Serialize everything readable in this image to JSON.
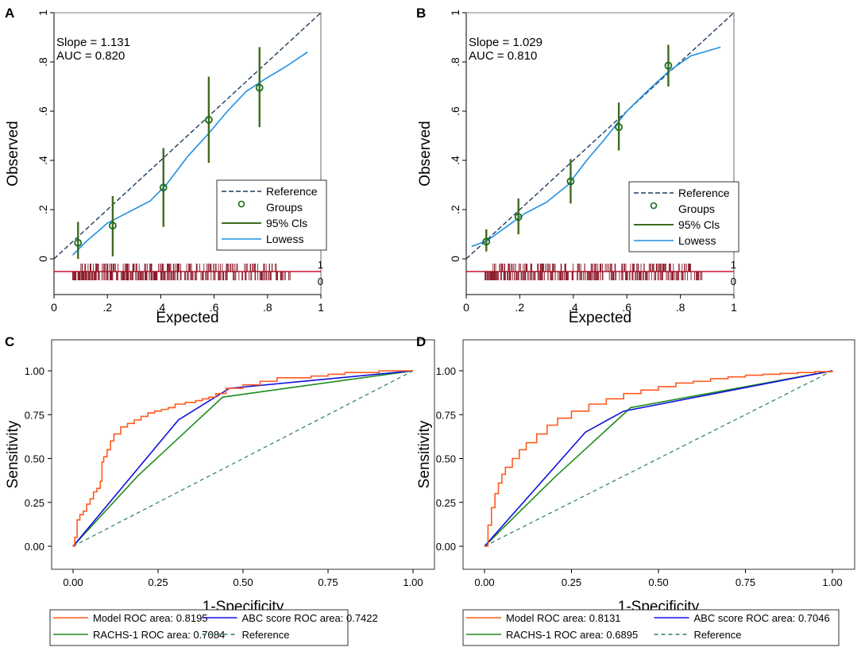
{
  "colors": {
    "reference_dash": "#1F3A5F",
    "groups_marker": "#1A6B1A",
    "ci_line": "#3E6B1E",
    "lowess": "#1E8FE0",
    "rug": "#8B1A2A",
    "rug_base": "#C8102E",
    "model_roc": "#FF5A1F",
    "abc_roc": "#1010E0",
    "rachs_roc": "#1E8C1E",
    "roc_reference": "#2E7D5B"
  },
  "chart_data": [
    {
      "panel": "A",
      "type": "scatter",
      "xlabel": "Expected",
      "ylabel": "Observed",
      "xlim": [
        0,
        1
      ],
      "ylim": [
        -0.08,
        1
      ],
      "x_ticks": [
        "0",
        ".2",
        ".4",
        ".6",
        ".8",
        "1"
      ],
      "y_ticks": [
        "0",
        ".2",
        ".4",
        ".6",
        ".8",
        "1"
      ],
      "annotations": [
        "Slope = 1.131",
        "AUC = 0.820"
      ],
      "legend": [
        "Reference",
        "Groups",
        "95% Cls",
        "Lowess"
      ],
      "rug_labels": [
        "1",
        "0"
      ],
      "reference": {
        "x": [
          0,
          1
        ],
        "y": [
          0,
          1
        ]
      },
      "groups": {
        "x": [
          0.09,
          0.22,
          0.41,
          0.58,
          0.77
        ],
        "y": [
          0.065,
          0.135,
          0.29,
          0.565,
          0.695
        ]
      },
      "ci": {
        "lower": [
          0.0,
          0.01,
          0.13,
          0.39,
          0.535
        ],
        "upper": [
          0.15,
          0.255,
          0.45,
          0.74,
          0.86
        ]
      },
      "lowess": {
        "x": [
          0.07,
          0.12,
          0.2,
          0.28,
          0.36,
          0.42,
          0.5,
          0.58,
          0.65,
          0.72,
          0.79,
          0.86,
          0.95
        ],
        "y": [
          0.015,
          0.07,
          0.145,
          0.19,
          0.235,
          0.3,
          0.415,
          0.51,
          0.6,
          0.68,
          0.73,
          0.775,
          0.84
        ]
      }
    },
    {
      "panel": "B",
      "type": "scatter",
      "xlabel": "Expected",
      "ylabel": "Observed",
      "xlim": [
        0,
        1
      ],
      "ylim": [
        -0.08,
        1
      ],
      "x_ticks": [
        "0",
        ".2",
        ".4",
        ".6",
        ".8",
        "1"
      ],
      "y_ticks": [
        "0",
        ".2",
        ".4",
        ".6",
        ".8",
        "1"
      ],
      "annotations": [
        "Slope = 1.029",
        "AUC = 0.810"
      ],
      "legend": [
        "Reference",
        "Groups",
        "95% Cls",
        "Lowess"
      ],
      "rug_labels": [
        "1",
        "0"
      ],
      "reference": {
        "x": [
          0,
          1
        ],
        "y": [
          0,
          1
        ]
      },
      "groups": {
        "x": [
          0.075,
          0.195,
          0.39,
          0.57,
          0.755
        ],
        "y": [
          0.07,
          0.17,
          0.315,
          0.535,
          0.785
        ]
      },
      "ci": {
        "lower": [
          0.03,
          0.1,
          0.225,
          0.44,
          0.7
        ],
        "upper": [
          0.12,
          0.245,
          0.405,
          0.635,
          0.87
        ]
      },
      "lowess": {
        "x": [
          0.02,
          0.08,
          0.15,
          0.22,
          0.3,
          0.38,
          0.45,
          0.52,
          0.6,
          0.68,
          0.76,
          0.84,
          0.95
        ],
        "y": [
          0.05,
          0.075,
          0.13,
          0.185,
          0.23,
          0.3,
          0.4,
          0.49,
          0.6,
          0.685,
          0.765,
          0.825,
          0.86
        ]
      }
    },
    {
      "panel": "C",
      "type": "line",
      "xlabel": "1-Specificity",
      "ylabel": "Sensitivity",
      "xlim": [
        0,
        1
      ],
      "ylim": [
        0,
        1
      ],
      "x_ticks": [
        "0.00",
        "0.25",
        "0.50",
        "0.75",
        "1.00"
      ],
      "y_ticks": [
        "0.00",
        "0.25",
        "0.50",
        "0.75",
        "1.00"
      ],
      "legend": [
        "Model ROC area: 0.8195",
        "ABC score ROC area: 0.7422",
        "RACHS-1 ROC area: 0.7084",
        "Reference"
      ],
      "series": [
        {
          "name": "Model ROC area: 0.8195",
          "x": [
            0,
            0.005,
            0.012,
            0.02,
            0.03,
            0.04,
            0.05,
            0.06,
            0.07,
            0.08,
            0.085,
            0.09,
            0.1,
            0.11,
            0.12,
            0.14,
            0.16,
            0.18,
            0.2,
            0.22,
            0.24,
            0.26,
            0.28,
            0.3,
            0.33,
            0.36,
            0.38,
            0.4,
            0.42,
            0.45,
            0.5,
            0.55,
            0.6,
            0.7,
            0.75,
            0.8,
            0.9,
            1.0
          ],
          "y": [
            0,
            0.05,
            0.15,
            0.18,
            0.2,
            0.24,
            0.27,
            0.31,
            0.33,
            0.37,
            0.48,
            0.51,
            0.55,
            0.6,
            0.64,
            0.68,
            0.7,
            0.72,
            0.74,
            0.76,
            0.77,
            0.78,
            0.79,
            0.81,
            0.82,
            0.83,
            0.84,
            0.85,
            0.87,
            0.9,
            0.92,
            0.94,
            0.96,
            0.97,
            0.98,
            0.99,
            1.0,
            1.0
          ]
        },
        {
          "name": "ABC score ROC area: 0.7422",
          "x": [
            0,
            0.31,
            0.46,
            1.0
          ],
          "y": [
            0,
            0.72,
            0.9,
            1.0
          ]
        },
        {
          "name": "RACHS-1 ROC area: 0.7084",
          "x": [
            0,
            0.19,
            0.44,
            1.0
          ],
          "y": [
            0,
            0.4,
            0.85,
            1.0
          ]
        },
        {
          "name": "Reference",
          "x": [
            0,
            1.0
          ],
          "y": [
            0,
            1.0
          ]
        }
      ]
    },
    {
      "panel": "D",
      "type": "line",
      "xlabel": "1-Specificity",
      "ylabel": "Sensitivity",
      "xlim": [
        0,
        1
      ],
      "ylim": [
        0,
        1
      ],
      "x_ticks": [
        "0.00",
        "0.25",
        "0.50",
        "0.75",
        "1.00"
      ],
      "y_ticks": [
        "0.00",
        "0.25",
        "0.50",
        "0.75",
        "1.00"
      ],
      "legend": [
        "Model ROC area: 0.8131",
        "ABC score ROC area: 0.7046",
        "RACHS-1 ROC area: 0.6895",
        "Reference"
      ],
      "series": [
        {
          "name": "Model ROC area: 0.8131",
          "x": [
            0,
            0.01,
            0.02,
            0.03,
            0.04,
            0.05,
            0.06,
            0.08,
            0.1,
            0.12,
            0.15,
            0.18,
            0.21,
            0.25,
            0.3,
            0.35,
            0.4,
            0.45,
            0.5,
            0.55,
            0.6,
            0.65,
            0.7,
            0.75,
            0.8,
            0.85,
            0.9,
            0.95,
            1.0
          ],
          "y": [
            0,
            0.12,
            0.22,
            0.3,
            0.36,
            0.41,
            0.45,
            0.5,
            0.55,
            0.59,
            0.64,
            0.69,
            0.73,
            0.77,
            0.81,
            0.84,
            0.87,
            0.89,
            0.91,
            0.93,
            0.94,
            0.955,
            0.965,
            0.975,
            0.98,
            0.985,
            0.99,
            0.995,
            1.0
          ]
        },
        {
          "name": "ABC score ROC area: 0.7046",
          "x": [
            0,
            0.29,
            0.4,
            1.0
          ],
          "y": [
            0,
            0.65,
            0.77,
            1.0
          ]
        },
        {
          "name": "RACHS-1 ROC area: 0.6895",
          "x": [
            0,
            0.2,
            0.42,
            1.0
          ],
          "y": [
            0,
            0.39,
            0.79,
            1.0
          ]
        },
        {
          "name": "Reference",
          "x": [
            0,
            1.0
          ],
          "y": [
            0,
            1.0
          ]
        }
      ]
    }
  ]
}
